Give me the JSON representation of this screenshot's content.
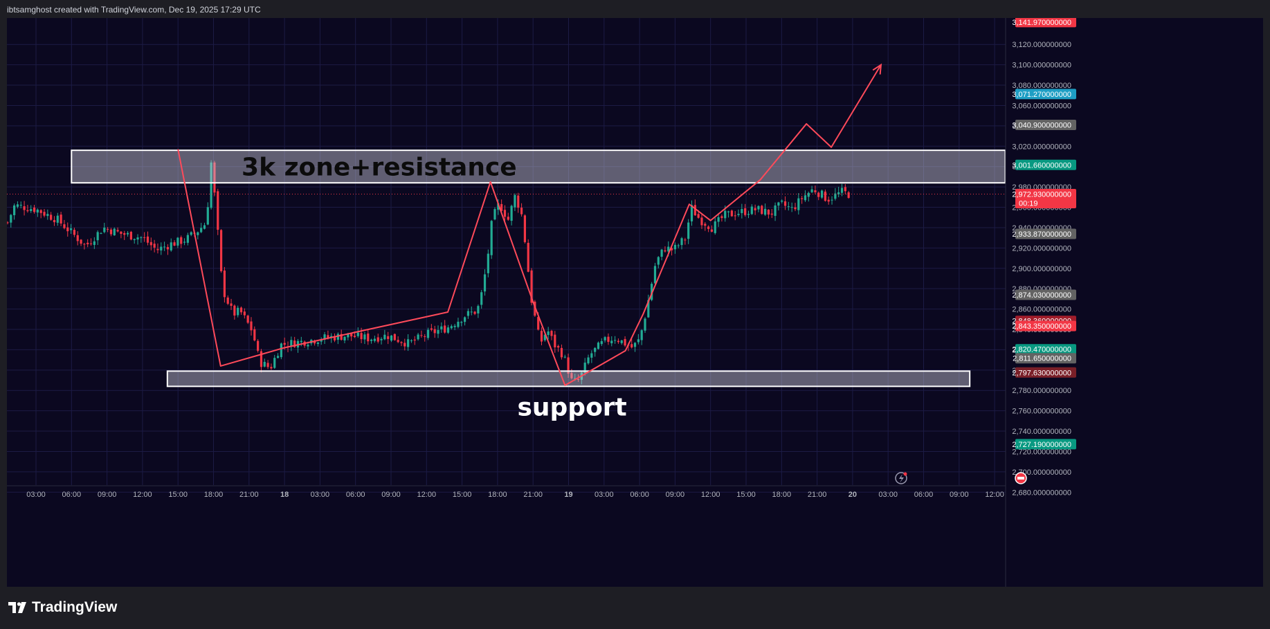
{
  "header": {
    "text": "ibtsamghost created with TradingView.com, Dec 19, 2025 17:29 UTC"
  },
  "footer": {
    "brand": "TradingView"
  },
  "colors": {
    "bg": "#0b0820",
    "grid": "#1c1b45",
    "up": "#22ab94",
    "down": "#f23645",
    "axis_text": "#b2b5be",
    "annotation": "#ff4a5a"
  },
  "chart_data": {
    "type": "candlestick",
    "time_labels": [
      "03:00",
      "06:00",
      "09:00",
      "12:00",
      "15:00",
      "18:00",
      "21:00",
      "18",
      "03:00",
      "06:00",
      "09:00",
      "12:00",
      "15:00",
      "18:00",
      "21:00",
      "19",
      "03:00",
      "06:00",
      "09:00",
      "12:00",
      "15:00",
      "18:00",
      "21:00",
      "20",
      "03:00",
      "06:00",
      "09:00",
      "12:00"
    ],
    "y_ticks": [
      "3,120.000000000",
      "3,100.000000000",
      "3,080.000000000",
      "3,060.000000000",
      "3,040.000000000",
      "3,020.000000000",
      "3,000.000000000",
      "2,980.000000000",
      "2,960.000000000",
      "2,940.000000000",
      "2,920.000000000",
      "2,900.000000000",
      "2,880.000000000",
      "2,860.000000000",
      "2,840.000000000",
      "2,820.000000000",
      "2,800.000000000",
      "2,780.000000000",
      "2,760.000000000",
      "2,740.000000000",
      "2,720.000000000",
      "2,700.000000000",
      "2,680.000000000"
    ],
    "ylim": [
      2670,
      3146
    ],
    "price_badges": [
      {
        "value": 3141.97,
        "text": "3,141.970000000",
        "color": "#f23645"
      },
      {
        "value": 3071.27,
        "text": "3,071.270000000",
        "color": "#1e9ec4"
      },
      {
        "value": 3040.9,
        "text": "3,040.900000000",
        "color": "#636363"
      },
      {
        "value": 3001.66,
        "text": "3,001.660000000",
        "color": "#089981"
      },
      {
        "value": 2972.93,
        "text": "2,972.930000000",
        "sub": "00:19",
        "color": "#f23645"
      },
      {
        "value": 2933.87,
        "text": "2,933.870000000",
        "color": "#636363"
      },
      {
        "value": 2874.03,
        "text": "2,874.030000000",
        "color": "#636363"
      },
      {
        "value": 2848.36,
        "text": "2,848.360000000",
        "color": "#a11d2b"
      },
      {
        "value": 2843.35,
        "text": "2,843.350000000",
        "color": "#f23645"
      },
      {
        "value": 2820.47,
        "text": "2,820.470000000",
        "color": "#089981"
      },
      {
        "value": 2811.65,
        "text": "2,811.650000000",
        "color": "#636363"
      },
      {
        "value": 2797.63,
        "text": "2,797.630000000",
        "color": "#7a1f28"
      },
      {
        "value": 2727.19,
        "text": "2,727.190000000",
        "color": "#089981"
      }
    ],
    "current_price": 2972.93,
    "zones": [
      {
        "label": "3k zone+resistance",
        "from_slot": 1,
        "to_slot": 27.3,
        "low": 2984,
        "high": 3016
      },
      {
        "label": "support",
        "from_slot": 3.7,
        "to_slot": 26.3,
        "low": 2784,
        "high": 2799
      }
    ],
    "projection": [
      [
        4.0,
        3017
      ],
      [
        5.2,
        2804
      ],
      [
        7.0,
        2822
      ],
      [
        11.6,
        2857
      ],
      [
        12.8,
        2985
      ],
      [
        14.0,
        2867
      ],
      [
        14.9,
        2785
      ],
      [
        16.6,
        2819
      ],
      [
        17.1,
        2855
      ],
      [
        18.4,
        2963
      ],
      [
        19.0,
        2947
      ],
      [
        20.4,
        2987
      ],
      [
        21.7,
        3042
      ],
      [
        22.4,
        3019
      ],
      [
        23.8,
        3100
      ]
    ],
    "candle_keys": [
      [
        -0.8,
        2945
      ],
      [
        -0.6,
        2962
      ],
      [
        0.0,
        2958
      ],
      [
        0.6,
        2948
      ],
      [
        1.0,
        2935
      ],
      [
        1.4,
        2922
      ],
      [
        1.9,
        2940
      ],
      [
        2.4,
        2934
      ],
      [
        3.0,
        2930
      ],
      [
        3.4,
        2918
      ],
      [
        3.8,
        2924
      ],
      [
        4.2,
        2928
      ],
      [
        4.5,
        2935
      ],
      [
        4.8,
        2945
      ],
      [
        4.93,
        3005
      ],
      [
        5.05,
        2965
      ],
      [
        5.25,
        2880
      ],
      [
        5.55,
        2855
      ],
      [
        5.75,
        2858
      ],
      [
        6.1,
        2838
      ],
      [
        6.3,
        2808
      ],
      [
        6.6,
        2802
      ],
      [
        6.9,
        2825
      ],
      [
        7.5,
        2828
      ],
      [
        8.2,
        2832
      ],
      [
        8.8,
        2834
      ],
      [
        9.4,
        2831
      ],
      [
        9.9,
        2834
      ],
      [
        10.5,
        2826
      ],
      [
        11.0,
        2835
      ],
      [
        11.6,
        2842
      ],
      [
        12.1,
        2854
      ],
      [
        12.4,
        2858
      ],
      [
        12.5,
        2865
      ],
      [
        12.7,
        2905
      ],
      [
        12.85,
        2948
      ],
      [
        13.05,
        2964
      ],
      [
        13.3,
        2948
      ],
      [
        13.5,
        2972
      ],
      [
        13.7,
        2950
      ],
      [
        13.95,
        2870
      ],
      [
        14.2,
        2826
      ],
      [
        14.4,
        2840
      ],
      [
        14.6,
        2825
      ],
      [
        14.85,
        2815
      ],
      [
        15.1,
        2788
      ],
      [
        15.3,
        2790
      ],
      [
        15.6,
        2815
      ],
      [
        16.0,
        2828
      ],
      [
        16.3,
        2832
      ],
      [
        16.6,
        2826
      ],
      [
        16.8,
        2822
      ],
      [
        17.0,
        2830
      ],
      [
        17.2,
        2860
      ],
      [
        17.45,
        2905
      ],
      [
        17.7,
        2920
      ],
      [
        17.95,
        2918
      ],
      [
        18.3,
        2930
      ],
      [
        18.45,
        2960
      ],
      [
        18.7,
        2948
      ],
      [
        19.05,
        2940
      ],
      [
        19.4,
        2952
      ],
      [
        19.8,
        2955
      ],
      [
        20.3,
        2958
      ],
      [
        20.7,
        2954
      ],
      [
        21.0,
        2963
      ],
      [
        21.3,
        2958
      ],
      [
        21.6,
        2970
      ],
      [
        21.9,
        2978
      ],
      [
        22.3,
        2968
      ],
      [
        22.7,
        2975
      ],
      [
        22.9,
        2972.93
      ]
    ]
  }
}
